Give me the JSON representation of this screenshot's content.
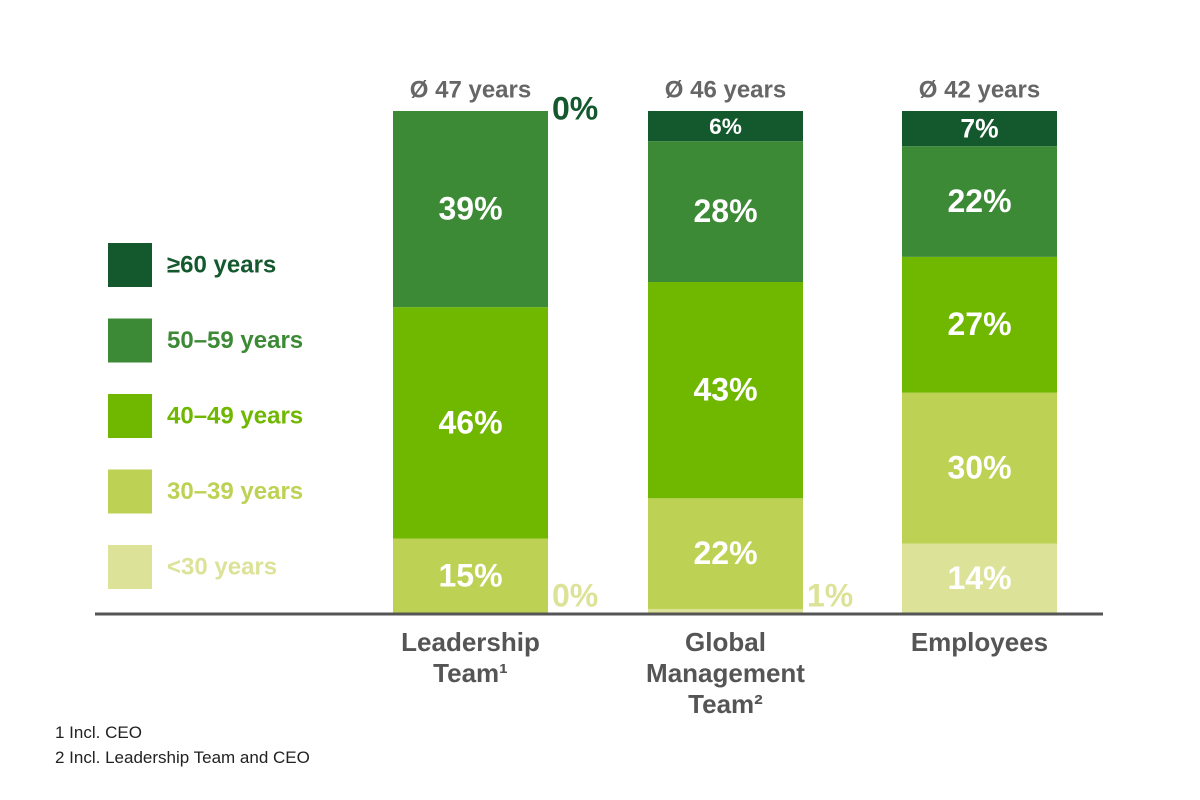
{
  "chart_data": {
    "type": "stacked_bar",
    "categories": [
      "Leadership Team¹",
      "Global Management Team²",
      "Employees"
    ],
    "annotations": [
      "Ø 47 years",
      "Ø 46 years",
      "Ø 42 years"
    ],
    "series": [
      {
        "name": "<30 years",
        "color": "#dce398",
        "values": [
          0,
          1,
          14
        ],
        "value_labels": [
          "0%",
          "1%",
          "14%"
        ]
      },
      {
        "name": "30–39 years",
        "color": "#bdd254",
        "values": [
          15,
          22,
          30
        ],
        "value_labels": [
          "15%",
          "22%",
          "30%"
        ]
      },
      {
        "name": "40–49 years",
        "color": "#70b800",
        "values": [
          46,
          43,
          27
        ],
        "value_labels": [
          "46%",
          "43%",
          "27%"
        ]
      },
      {
        "name": "50–59 years",
        "color": "#3d8a36",
        "values": [
          39,
          28,
          22
        ],
        "value_labels": [
          "39%",
          "28%",
          "22%"
        ]
      },
      {
        "name": "≥60 years",
        "color": "#14582e",
        "values": [
          0,
          6,
          7
        ],
        "value_labels": [
          "0%",
          "6%",
          "7%"
        ]
      }
    ],
    "legend": "left",
    "footnotes": [
      "1 Incl. CEO",
      "2 Incl. Leadership Team and CEO"
    ]
  }
}
